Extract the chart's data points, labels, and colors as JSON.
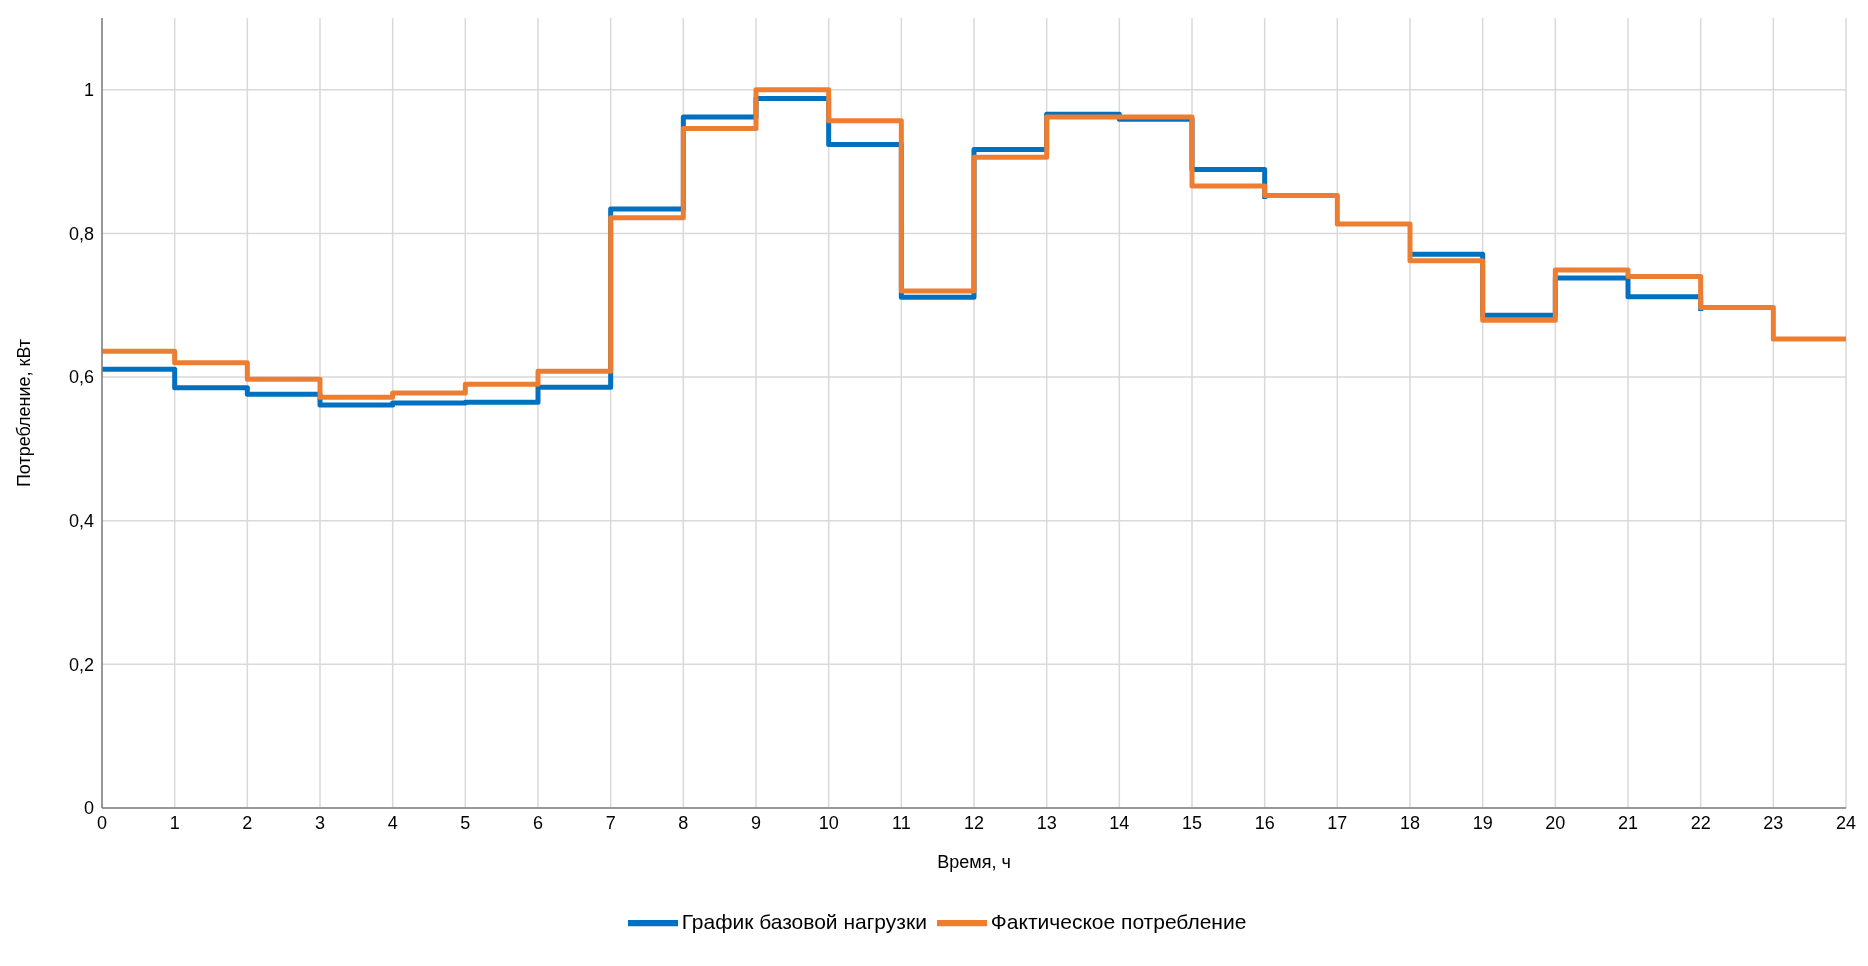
{
  "chart_data": {
    "type": "step",
    "xlabel": "Время, ч",
    "ylabel": "Потребление, кВт",
    "x": [
      0,
      1,
      2,
      3,
      4,
      5,
      6,
      7,
      8,
      9,
      10,
      11,
      12,
      13,
      14,
      15,
      16,
      17,
      18,
      19,
      20,
      21,
      22,
      23,
      24
    ],
    "series": [
      {
        "name": "График базовой нагрузки",
        "color": "#0070c0",
        "values": [
          0.611,
          0.585,
          0.576,
          0.561,
          0.564,
          0.565,
          0.586,
          0.834,
          0.962,
          0.988,
          0.924,
          0.711,
          0.917,
          0.966,
          0.959,
          0.889,
          0.848,
          null,
          0.771,
          0.686,
          0.738,
          0.712,
          0.692,
          null,
          null
        ]
      },
      {
        "name": "Фактическое потребление",
        "color": "#ed7d31",
        "values": [
          0.636,
          0.62,
          0.597,
          0.572,
          0.578,
          0.59,
          0.608,
          0.822,
          0.946,
          1.0,
          0.957,
          0.72,
          0.906,
          0.962,
          0.962,
          0.866,
          0.853,
          0.813,
          0.762,
          0.679,
          0.749,
          0.74,
          0.697,
          0.653,
          0.653
        ]
      }
    ],
    "xlim": [
      0,
      24
    ],
    "xticks": [
      0,
      1,
      2,
      3,
      4,
      5,
      6,
      7,
      8,
      9,
      10,
      11,
      12,
      13,
      14,
      15,
      16,
      17,
      18,
      19,
      20,
      21,
      22,
      23,
      24
    ],
    "ylim": [
      0,
      1.1
    ],
    "yticks": [
      0,
      {
        "value": 0.2,
        "label": "0,2"
      },
      {
        "value": 0.4,
        "label": "0,4"
      },
      {
        "value": 0.6,
        "label": "0,6"
      },
      {
        "value": 0.8,
        "label": "0,8"
      },
      1
    ],
    "grid": true,
    "legend": "bottom",
    "line_style": "solid",
    "marker": "none"
  }
}
